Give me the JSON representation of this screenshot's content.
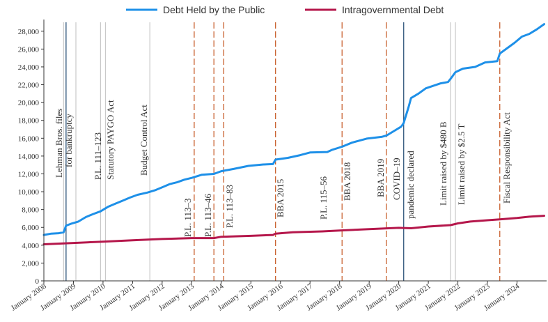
{
  "chart_data": {
    "type": "line",
    "title": "",
    "xlabel": "",
    "ylabel": "",
    "ylim": [
      0,
      29000
    ],
    "yticks": [
      0,
      2000,
      4000,
      6000,
      8000,
      10000,
      12000,
      14000,
      16000,
      18000,
      20000,
      22000,
      24000,
      26000,
      28000
    ],
    "ytick_labels": [
      "0",
      "2,000",
      "4,000",
      "6,000",
      "8,000",
      "10,000",
      "12,000",
      "14,000",
      "16,000",
      "18,000",
      "20,000",
      "22,000",
      "24,000",
      "26,000",
      "28,000"
    ],
    "xlim": [
      "2008-01",
      "2025-01"
    ],
    "x_tick_labels": [
      "January 2008",
      "January 2009",
      "January 2010",
      "January 2011",
      "January 2012",
      "January 2013",
      "January 2014",
      "January 2015",
      "January 2016",
      "January 2017",
      "January 2018",
      "January 2019",
      "January 2020",
      "January 2021",
      "January 2022",
      "January 2023",
      "January 2024"
    ],
    "grid": false,
    "legend_position": "top",
    "series": [
      {
        "name": "Debt Held by the Public",
        "color": "#1e90e8",
        "points": [
          [
            "2008-01",
            5150
          ],
          [
            "2008-04",
            5300
          ],
          [
            "2008-07",
            5350
          ],
          [
            "2008-09",
            5450
          ],
          [
            "2008-10",
            6200
          ],
          [
            "2008-12",
            6400
          ],
          [
            "2009-03",
            6650
          ],
          [
            "2009-06",
            7150
          ],
          [
            "2009-09",
            7500
          ],
          [
            "2009-12",
            7800
          ],
          [
            "2010-03",
            8300
          ],
          [
            "2010-06",
            8650
          ],
          [
            "2010-09",
            9000
          ],
          [
            "2010-12",
            9350
          ],
          [
            "2011-03",
            9650
          ],
          [
            "2011-07",
            9900
          ],
          [
            "2011-10",
            10150
          ],
          [
            "2012-01",
            10500
          ],
          [
            "2012-04",
            10850
          ],
          [
            "2012-07",
            11050
          ],
          [
            "2012-10",
            11350
          ],
          [
            "2013-01",
            11550
          ],
          [
            "2013-05",
            11900
          ],
          [
            "2013-10",
            12000
          ],
          [
            "2014-01",
            12300
          ],
          [
            "2014-06",
            12550
          ],
          [
            "2014-12",
            12900
          ],
          [
            "2015-06",
            13050
          ],
          [
            "2015-10",
            13100
          ],
          [
            "2015-11",
            13600
          ],
          [
            "2016-04",
            13800
          ],
          [
            "2016-09",
            14100
          ],
          [
            "2017-01",
            14400
          ],
          [
            "2017-08",
            14450
          ],
          [
            "2017-10",
            14700
          ],
          [
            "2018-02",
            15050
          ],
          [
            "2018-06",
            15500
          ],
          [
            "2018-12",
            15950
          ],
          [
            "2019-06",
            16150
          ],
          [
            "2019-08",
            16300
          ],
          [
            "2019-11",
            16800
          ],
          [
            "2020-02",
            17300
          ],
          [
            "2020-03",
            17700
          ],
          [
            "2020-05",
            19500
          ],
          [
            "2020-06",
            20500
          ],
          [
            "2020-09",
            21000
          ],
          [
            "2020-12",
            21600
          ],
          [
            "2021-06",
            22150
          ],
          [
            "2021-09",
            22300
          ],
          [
            "2021-10",
            22650
          ],
          [
            "2021-12",
            23400
          ],
          [
            "2022-03",
            23800
          ],
          [
            "2022-08",
            24000
          ],
          [
            "2022-12",
            24500
          ],
          [
            "2023-05",
            24650
          ],
          [
            "2023-06",
            25500
          ],
          [
            "2023-09",
            26100
          ],
          [
            "2023-12",
            26700
          ],
          [
            "2024-03",
            27400
          ],
          [
            "2024-06",
            27700
          ],
          [
            "2024-09",
            28200
          ],
          [
            "2024-12",
            28800
          ]
        ]
      },
      {
        "name": "Intragovernmental Debt",
        "color": "#b5174b",
        "points": [
          [
            "2008-01",
            4100
          ],
          [
            "2009-01",
            4250
          ],
          [
            "2010-01",
            4400
          ],
          [
            "2011-01",
            4550
          ],
          [
            "2012-01",
            4700
          ],
          [
            "2013-01",
            4800
          ],
          [
            "2013-10",
            4800
          ],
          [
            "2014-01",
            4950
          ],
          [
            "2015-01",
            5050
          ],
          [
            "2015-10",
            5150
          ],
          [
            "2015-11",
            5300
          ],
          [
            "2016-06",
            5450
          ],
          [
            "2017-06",
            5550
          ],
          [
            "2018-01",
            5650
          ],
          [
            "2019-01",
            5800
          ],
          [
            "2020-01",
            5950
          ],
          [
            "2020-06",
            5900
          ],
          [
            "2021-01",
            6100
          ],
          [
            "2021-10",
            6250
          ],
          [
            "2022-01",
            6450
          ],
          [
            "2022-06",
            6650
          ],
          [
            "2023-01",
            6800
          ],
          [
            "2023-06",
            6900
          ],
          [
            "2024-01",
            7050
          ],
          [
            "2024-06",
            7200
          ],
          [
            "2024-12",
            7300
          ]
        ]
      }
    ],
    "events": [
      {
        "date": "2008-09",
        "label": "Lehman Bros. files",
        "style": "solid-light"
      },
      {
        "date": "2008-10",
        "label": "for bankruptcy",
        "style": "solid-dark"
      },
      {
        "date": "2009-02",
        "label": "",
        "style": "solid-light"
      },
      {
        "date": "2009-12",
        "label": "P.L. 111–123",
        "style": "solid-light"
      },
      {
        "date": "2010-02",
        "label": "Statutory PAYGO Act",
        "style": "solid-light"
      },
      {
        "date": "2011-08",
        "label": "Budget Control Act",
        "style": "solid-light"
      },
      {
        "date": "2013-02",
        "label": "P.L. 113–3",
        "style": "dashed"
      },
      {
        "date": "2013-10",
        "label": "P.L. 113–46",
        "style": "dashed"
      },
      {
        "date": "2014-02",
        "label": "P.L. 113–83",
        "style": "dashed"
      },
      {
        "date": "2015-11",
        "label": "BBA 2015",
        "style": "dashed"
      },
      {
        "date": "2018-02",
        "label": "P.L. 115–56",
        "style": "dashed"
      },
      {
        "date": "2018-02",
        "label": "BBA 2018",
        "style": "dashed"
      },
      {
        "date": "2019-08",
        "label": "BBA 2019",
        "style": "dashed"
      },
      {
        "date": "2020-03",
        "label": "COVID–19",
        "style": "solid-dark"
      },
      {
        "date": "2020-03",
        "label": "pandemic declared",
        "style": "solid-dark"
      },
      {
        "date": "2021-10",
        "label": "Limit raised by $480 B",
        "style": "solid-light"
      },
      {
        "date": "2021-12",
        "label": "Limit raised by $2.5 T",
        "style": "solid-light"
      },
      {
        "date": "2023-06",
        "label": "Fiscal Responsibility Act",
        "style": "dashed"
      }
    ]
  }
}
